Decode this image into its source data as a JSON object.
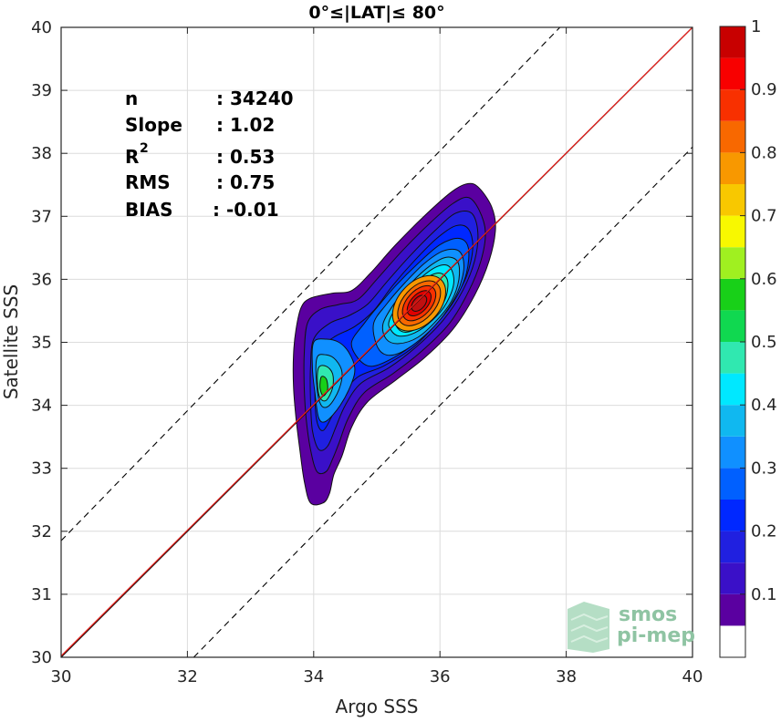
{
  "chart_data": {
    "type": "contour-density",
    "title": "0°≤|LAT|≤ 80°",
    "xlabel": "Argo SSS",
    "ylabel": "Satellite SSS",
    "xlim": [
      30,
      40
    ],
    "ylim": [
      30,
      40
    ],
    "x_ticks": [
      "30",
      "32",
      "34",
      "36",
      "38",
      "40"
    ],
    "y_ticks": [
      "30",
      "31",
      "32",
      "33",
      "34",
      "35",
      "36",
      "37",
      "38",
      "39",
      "40"
    ],
    "grid": true,
    "stats": {
      "n_label": "n",
      "n_value": ": 34240",
      "slope_label": "Slope",
      "slope_value": ": 1.02",
      "r2_label": "R",
      "r2_sup": "2",
      "r2_value": ": 0.53",
      "rms_label": "RMS",
      "rms_value": ": 0.75",
      "bias_label": "BIAS",
      "bias_value": ": -0.01"
    },
    "lines": {
      "identity": {
        "from": [
          30,
          30
        ],
        "to": [
          40,
          40
        ],
        "color": "#000000"
      },
      "fit": {
        "from": [
          30,
          30.02
        ],
        "to": [
          40,
          40.0
        ],
        "color": "#e0201b"
      },
      "upper_dashed": {
        "from": [
          30,
          31.85
        ],
        "to": [
          37.9,
          40
        ],
        "color": "#000000"
      },
      "lower_dashed": {
        "from": [
          32.1,
          30
        ],
        "to": [
          40,
          38.1
        ],
        "color": "#000000"
      }
    },
    "colorbar": {
      "ticks": [
        "0.1",
        "0.2",
        "0.3",
        "0.4",
        "0.5",
        "0.6",
        "0.7",
        "0.8",
        "0.9",
        "1"
      ],
      "tick_values": [
        0.1,
        0.2,
        0.3,
        0.4,
        0.5,
        0.6,
        0.7,
        0.8,
        0.9,
        1.0
      ],
      "levels": [
        0,
        0.05,
        0.1,
        0.15,
        0.2,
        0.25,
        0.3,
        0.35,
        0.4,
        0.45,
        0.5,
        0.55,
        0.6,
        0.65,
        0.7,
        0.75,
        0.8,
        0.85,
        0.9,
        0.95,
        1.0
      ],
      "colors": [
        "#ffffff",
        "#5a00a0",
        "#3a10c8",
        "#2020e0",
        "#0028ff",
        "#0060ff",
        "#1090ff",
        "#10b8f0",
        "#00e8ff",
        "#30e8b0",
        "#10d850",
        "#18d018",
        "#a0f020",
        "#f8f800",
        "#f8c800",
        "#f89800",
        "#f86800",
        "#f83000",
        "#f80000",
        "#c80000"
      ]
    },
    "contours": [
      {
        "level": 0.05,
        "color": "#5a00a0",
        "points": [
          [
            33.8,
            35.55
          ],
          [
            33.95,
            35.7
          ],
          [
            34.3,
            35.78
          ],
          [
            34.6,
            35.82
          ],
          [
            34.9,
            36.1
          ],
          [
            35.3,
            36.55
          ],
          [
            35.8,
            37.05
          ],
          [
            36.2,
            37.4
          ],
          [
            36.45,
            37.52
          ],
          [
            36.62,
            37.45
          ],
          [
            36.82,
            37.15
          ],
          [
            36.88,
            36.8
          ],
          [
            36.78,
            36.3
          ],
          [
            36.55,
            35.75
          ],
          [
            36.2,
            35.2
          ],
          [
            35.75,
            34.75
          ],
          [
            35.3,
            34.4
          ],
          [
            34.85,
            34.05
          ],
          [
            34.6,
            33.65
          ],
          [
            34.45,
            33.2
          ],
          [
            34.32,
            32.9
          ],
          [
            34.25,
            32.6
          ],
          [
            34.15,
            32.45
          ],
          [
            33.95,
            32.45
          ],
          [
            33.85,
            32.8
          ],
          [
            33.78,
            33.3
          ],
          [
            33.72,
            33.8
          ],
          [
            33.68,
            34.3
          ],
          [
            33.68,
            34.8
          ],
          [
            33.72,
            35.2
          ]
        ]
      },
      {
        "level": 0.1,
        "color": "#3a10c8",
        "points": [
          [
            33.9,
            35.3
          ],
          [
            34.1,
            35.52
          ],
          [
            34.4,
            35.6
          ],
          [
            34.7,
            35.68
          ],
          [
            35.0,
            36.0
          ],
          [
            35.4,
            36.45
          ],
          [
            35.85,
            36.9
          ],
          [
            36.2,
            37.2
          ],
          [
            36.45,
            37.3
          ],
          [
            36.62,
            37.1
          ],
          [
            36.72,
            36.75
          ],
          [
            36.65,
            36.3
          ],
          [
            36.45,
            35.8
          ],
          [
            36.15,
            35.3
          ],
          [
            35.7,
            34.85
          ],
          [
            35.25,
            34.5
          ],
          [
            34.8,
            34.2
          ],
          [
            34.55,
            33.8
          ],
          [
            34.4,
            33.4
          ],
          [
            34.3,
            33.15
          ],
          [
            34.2,
            32.95
          ],
          [
            34.05,
            32.95
          ],
          [
            33.95,
            33.3
          ],
          [
            33.88,
            33.8
          ],
          [
            33.85,
            34.3
          ],
          [
            33.85,
            34.8
          ]
        ]
      },
      {
        "level": 0.15,
        "color": "#2020e0",
        "points": [
          [
            34.0,
            35.05
          ],
          [
            34.25,
            35.3
          ],
          [
            34.55,
            35.42
          ],
          [
            34.85,
            35.6
          ],
          [
            35.15,
            35.95
          ],
          [
            35.55,
            36.4
          ],
          [
            35.95,
            36.8
          ],
          [
            36.25,
            37.05
          ],
          [
            36.5,
            37.05
          ],
          [
            36.6,
            36.75
          ],
          [
            36.55,
            36.3
          ],
          [
            36.35,
            35.8
          ],
          [
            36.05,
            35.35
          ],
          [
            35.65,
            34.95
          ],
          [
            35.2,
            34.6
          ],
          [
            34.75,
            34.35
          ],
          [
            34.5,
            34.0
          ],
          [
            34.35,
            33.65
          ],
          [
            34.22,
            33.35
          ],
          [
            34.08,
            33.3
          ],
          [
            33.98,
            33.6
          ],
          [
            33.95,
            34.1
          ],
          [
            33.95,
            34.6
          ]
        ]
      },
      {
        "level": 0.2,
        "color": "#0028ff",
        "points": [
          [
            34.1,
            34.9
          ],
          [
            34.35,
            35.1
          ],
          [
            34.65,
            35.25
          ],
          [
            34.95,
            35.5
          ],
          [
            35.25,
            35.9
          ],
          [
            35.6,
            36.3
          ],
          [
            35.95,
            36.65
          ],
          [
            36.25,
            36.85
          ],
          [
            36.45,
            36.8
          ],
          [
            36.52,
            36.5
          ],
          [
            36.42,
            36.05
          ],
          [
            36.2,
            35.65
          ],
          [
            35.9,
            35.25
          ],
          [
            35.55,
            34.9
          ],
          [
            35.1,
            34.62
          ],
          [
            34.7,
            34.45
          ],
          [
            34.45,
            34.15
          ],
          [
            34.3,
            33.85
          ],
          [
            34.15,
            33.6
          ],
          [
            34.05,
            33.75
          ],
          [
            34.02,
            34.2
          ],
          [
            34.05,
            34.6
          ]
        ]
      },
      {
        "level": 0.25,
        "color": "#0060ff",
        "points": [
          [
            34.8,
            35.3
          ],
          [
            35.0,
            35.55
          ],
          [
            35.3,
            35.9
          ],
          [
            35.65,
            36.25
          ],
          [
            36.0,
            36.55
          ],
          [
            36.3,
            36.65
          ],
          [
            36.45,
            36.5
          ],
          [
            36.42,
            36.1
          ],
          [
            36.25,
            35.7
          ],
          [
            35.95,
            35.3
          ],
          [
            35.6,
            34.98
          ],
          [
            35.2,
            34.72
          ],
          [
            34.9,
            34.62
          ],
          [
            34.7,
            34.75
          ],
          [
            34.6,
            35.0
          ]
        ]
      },
      {
        "level": 0.3,
        "color": "#1090ff",
        "points": [
          [
            34.95,
            35.3
          ],
          [
            35.15,
            35.6
          ],
          [
            35.45,
            35.95
          ],
          [
            35.75,
            36.25
          ],
          [
            36.05,
            36.45
          ],
          [
            36.3,
            36.45
          ],
          [
            36.38,
            36.2
          ],
          [
            36.28,
            35.8
          ],
          [
            36.05,
            35.42
          ],
          [
            35.75,
            35.1
          ],
          [
            35.4,
            34.85
          ],
          [
            35.15,
            34.8
          ],
          [
            35.0,
            34.95
          ]
        ]
      },
      {
        "level": 0.35,
        "color": "#10b8f0",
        "points": [
          [
            35.1,
            35.3
          ],
          [
            35.3,
            35.65
          ],
          [
            35.55,
            35.95
          ],
          [
            35.85,
            36.22
          ],
          [
            36.1,
            36.35
          ],
          [
            36.28,
            36.28
          ],
          [
            36.3,
            36.0
          ],
          [
            36.18,
            35.65
          ],
          [
            35.95,
            35.35
          ],
          [
            35.65,
            35.08
          ],
          [
            35.35,
            34.98
          ],
          [
            35.15,
            35.05
          ]
        ]
      },
      {
        "level": 0.4,
        "color": "#00e8ff",
        "points": [
          [
            35.2,
            35.35
          ],
          [
            35.4,
            35.7
          ],
          [
            35.65,
            35.98
          ],
          [
            35.95,
            36.2
          ],
          [
            36.15,
            36.2
          ],
          [
            36.22,
            35.95
          ],
          [
            36.1,
            35.62
          ],
          [
            35.88,
            35.35
          ],
          [
            35.6,
            35.15
          ],
          [
            35.35,
            35.1
          ],
          [
            35.22,
            35.2
          ]
        ]
      },
      {
        "level": 0.45,
        "color": "#30e8b0",
        "points": [
          [
            35.28,
            35.4
          ],
          [
            35.48,
            35.72
          ],
          [
            35.72,
            35.98
          ],
          [
            35.98,
            36.1
          ],
          [
            36.12,
            35.98
          ],
          [
            36.08,
            35.68
          ],
          [
            35.88,
            35.42
          ],
          [
            35.6,
            35.2
          ],
          [
            35.38,
            35.18
          ]
        ]
      },
      {
        "level": 0.5,
        "color": "#10d850",
        "points": [
          [
            35.35,
            35.45
          ],
          [
            35.55,
            35.75
          ],
          [
            35.78,
            35.95
          ],
          [
            35.98,
            35.98
          ],
          [
            36.02,
            35.72
          ],
          [
            35.85,
            35.45
          ],
          [
            35.6,
            35.25
          ],
          [
            35.42,
            35.25
          ]
        ]
      },
      {
        "level": 0.55,
        "color": "#18d018",
        "points": [
          [
            35.4,
            35.5
          ],
          [
            35.6,
            35.75
          ],
          [
            35.8,
            35.88
          ],
          [
            35.92,
            35.78
          ],
          [
            35.82,
            35.52
          ],
          [
            35.6,
            35.32
          ],
          [
            35.45,
            35.33
          ]
        ]
      },
      {
        "level": 0.2,
        "color": "#1090ff",
        "points": [
          [
            34.0,
            35.0
          ],
          [
            34.2,
            35.05
          ],
          [
            34.4,
            35.0
          ],
          [
            34.55,
            34.85
          ],
          [
            34.65,
            34.6
          ],
          [
            34.6,
            34.35
          ],
          [
            34.42,
            34.0
          ],
          [
            34.2,
            33.75
          ],
          [
            34.08,
            33.8
          ],
          [
            34.02,
            34.2
          ],
          [
            33.98,
            34.6
          ]
        ]
      },
      {
        "level": 0.3,
        "color": "#10b8f0",
        "points": [
          [
            34.05,
            34.75
          ],
          [
            34.2,
            34.8
          ],
          [
            34.35,
            34.72
          ],
          [
            34.45,
            34.52
          ],
          [
            34.4,
            34.25
          ],
          [
            34.25,
            34.0
          ],
          [
            34.12,
            34.0
          ],
          [
            34.05,
            34.3
          ]
        ]
      },
      {
        "level": 0.4,
        "color": "#30e8b0",
        "points": [
          [
            34.08,
            34.6
          ],
          [
            34.2,
            34.62
          ],
          [
            34.3,
            34.5
          ],
          [
            34.3,
            34.28
          ],
          [
            34.2,
            34.08
          ],
          [
            34.1,
            34.12
          ],
          [
            34.06,
            34.35
          ]
        ]
      },
      {
        "level": 0.5,
        "color": "#18d018",
        "points": [
          [
            34.12,
            34.45
          ],
          [
            34.2,
            34.42
          ],
          [
            34.22,
            34.25
          ],
          [
            34.15,
            34.15
          ],
          [
            34.1,
            34.28
          ]
        ]
      },
      {
        "level": 0.6,
        "color": "#a0f020",
        "points": [
          [
            35.45,
            35.52
          ],
          [
            35.62,
            35.72
          ],
          [
            35.78,
            35.8
          ],
          [
            35.85,
            35.68
          ],
          [
            35.75,
            35.5
          ],
          [
            35.58,
            35.38
          ],
          [
            35.48,
            35.4
          ]
        ]
      },
      {
        "level": 0.65,
        "color": "#f8f800",
        "points": [
          [
            35.48,
            35.55
          ],
          [
            35.63,
            35.72
          ],
          [
            35.76,
            35.76
          ],
          [
            35.8,
            35.64
          ],
          [
            35.7,
            35.48
          ],
          [
            35.56,
            35.42
          ],
          [
            35.5,
            35.45
          ]
        ]
      },
      {
        "level": 0.7,
        "color": "#f8c800",
        "points": [
          [
            35.5,
            35.58
          ],
          [
            35.65,
            35.72
          ],
          [
            35.75,
            35.72
          ],
          [
            35.76,
            35.6
          ],
          [
            35.66,
            35.48
          ],
          [
            35.54,
            35.46
          ]
        ]
      }
    ]
  }
}
